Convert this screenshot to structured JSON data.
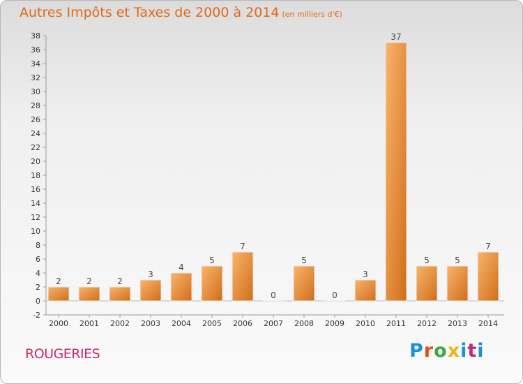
{
  "header": {
    "title": "Autres Impôts et Taxes de 2000 à 2014",
    "unit": "(en milliers d'€)"
  },
  "footer": {
    "commune": "ROUGERIES",
    "logo": "Proxiti"
  },
  "colors": {
    "title": "#e06818",
    "bar_light": "#f7a85a",
    "bar_dark": "#d9761e",
    "commune": "#c8286e"
  },
  "chart_data": {
    "type": "bar",
    "title": "Autres Impôts et Taxes de 2000 à 2014",
    "subtitle": "(en milliers d'€)",
    "categories": [
      "2000",
      "2001",
      "2002",
      "2003",
      "2004",
      "2005",
      "2006",
      "2007",
      "2008",
      "2009",
      "2010",
      "2011",
      "2012",
      "2013",
      "2014"
    ],
    "values": [
      2,
      2,
      2,
      3,
      4,
      5,
      7,
      0,
      5,
      0,
      3,
      37,
      5,
      5,
      7
    ],
    "ylim": [
      -2,
      38
    ],
    "yticks": [
      -2,
      0,
      2,
      4,
      6,
      8,
      10,
      12,
      14,
      16,
      18,
      20,
      22,
      24,
      26,
      28,
      30,
      32,
      34,
      36,
      38
    ],
    "grid": false,
    "legend": "none"
  }
}
